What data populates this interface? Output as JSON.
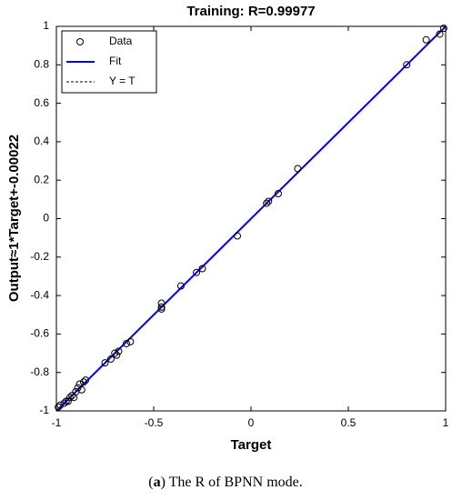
{
  "chart_data": {
    "type": "scatter",
    "title": "Training: R=0.99977",
    "xlabel": "Target",
    "ylabel": "Output≈1*Target+-0.00022",
    "xlim": [
      -1,
      1
    ],
    "ylim": [
      -1,
      1
    ],
    "xticks": [
      -1,
      -0.5,
      0,
      0.5,
      1
    ],
    "yticks": [
      -1,
      -0.8,
      -0.6,
      -0.4,
      -0.2,
      0,
      0.2,
      0.4,
      0.6,
      0.8,
      1
    ],
    "legend": "upper left",
    "series": [
      {
        "name": "Data",
        "color": "#000000",
        "marker": "circle",
        "x": [
          -0.99,
          -0.98,
          -0.96,
          -0.95,
          -0.94,
          -0.93,
          -0.92,
          -0.91,
          -0.9,
          -0.89,
          -0.88,
          -0.87,
          -0.86,
          -0.85,
          -0.75,
          -0.72,
          -0.7,
          -0.69,
          -0.68,
          -0.64,
          -0.62,
          -0.46,
          -0.46,
          -0.46,
          -0.36,
          -0.28,
          -0.25,
          -0.07,
          0.08,
          0.09,
          0.14,
          0.24,
          0.8,
          0.9,
          0.97,
          0.99
        ],
        "values": [
          -0.98,
          -0.97,
          -0.96,
          -0.95,
          -0.95,
          -0.93,
          -0.92,
          -0.93,
          -0.9,
          -0.88,
          -0.86,
          -0.89,
          -0.85,
          -0.84,
          -0.75,
          -0.73,
          -0.7,
          -0.71,
          -0.69,
          -0.65,
          -0.64,
          -0.44,
          -0.46,
          -0.47,
          -0.35,
          -0.28,
          -0.26,
          -0.09,
          0.08,
          0.09,
          0.13,
          0.26,
          0.8,
          0.93,
          0.96,
          0.99
        ]
      },
      {
        "name": "Fit",
        "color": "#0000ff",
        "line_style": "solid",
        "x": [
          -1,
          1
        ],
        "values": [
          -1.00022,
          0.99978
        ]
      },
      {
        "name": "Y = T",
        "color": "#000000",
        "line_style": "dashed",
        "x": [
          -1,
          1
        ],
        "values": [
          -1,
          1
        ]
      }
    ]
  },
  "caption": {
    "prefix": "(",
    "label": "a",
    "text": ") The R of BPNN mode."
  }
}
